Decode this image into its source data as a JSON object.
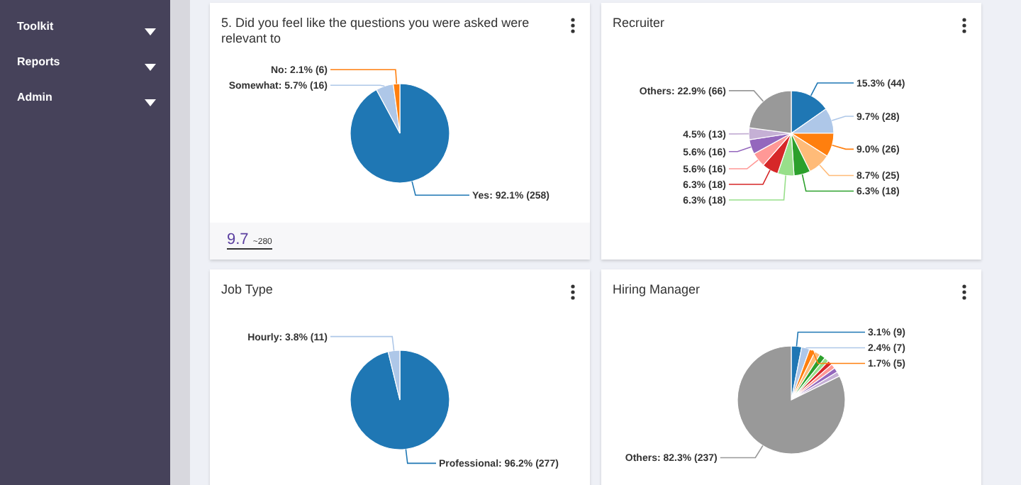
{
  "chart_data": [
    {
      "type": "other",
      "annotations": [
        "Toolkit",
        "Reports",
        "Admin"
      ]
    },
    {
      "type": "pie",
      "title": "5. Did you feel like the questions you were asked were relevant to",
      "categories": [
        "Yes",
        "Somewhat",
        "No"
      ],
      "values": [
        258,
        16,
        6
      ],
      "colors": [
        "#1f77b4",
        "#aec7e8",
        "#ff7f0e"
      ],
      "value_labels": [
        "92.1% (258)",
        "5.7% (16)",
        "2.1% (6)"
      ],
      "annotations": [
        "9.7",
        "~280"
      ]
    },
    {
      "type": "pie",
      "title": "Recruiter",
      "categories": [
        null,
        null,
        null,
        null,
        null,
        null,
        null,
        null,
        null,
        null,
        "Others"
      ],
      "values": [
        44,
        28,
        26,
        25,
        18,
        18,
        18,
        16,
        16,
        13,
        66
      ],
      "colors": [
        "#1f77b4",
        "#aec7e8",
        "#ff7f0e",
        "#ffbb78",
        "#2ca02c",
        "#98df8a",
        "#d62728",
        "#ff9896",
        "#9467bd",
        "#c5b0d5",
        "#999999"
      ],
      "value_labels": [
        "15.3% (44)",
        "9.7% (28)",
        "9.0% (26)",
        "8.7% (25)",
        "6.3% (18)",
        "6.3% (18)",
        "6.3% (18)",
        "5.6% (16)",
        "5.6% (16)",
        "4.5% (13)",
        "22.9% (66)"
      ]
    },
    {
      "type": "pie",
      "title": "Job Type",
      "categories": [
        "Professional",
        "Hourly"
      ],
      "values": [
        277,
        11
      ],
      "colors": [
        "#1f77b4",
        "#aec7e8"
      ],
      "value_labels": [
        "96.2% (277)",
        "3.8% (11)"
      ]
    },
    {
      "type": "pie",
      "title": "Hiring Manager",
      "categories": [
        null,
        null,
        null,
        null,
        null,
        null,
        null,
        null,
        null,
        null,
        "Others"
      ],
      "values": [
        9,
        7,
        5,
        5,
        5,
        4,
        4,
        4,
        4,
        4,
        237
      ],
      "colors": [
        "#1f77b4",
        "#aec7e8",
        "#ff7f0e",
        "#ffbb78",
        "#2ca02c",
        "#98df8a",
        "#d62728",
        "#ff9896",
        "#9467bd",
        "#c5b0d5",
        "#999999"
      ],
      "value_labels": [
        "3.1% (9)",
        "2.4% (7)",
        "1.7% (5)",
        null,
        null,
        null,
        null,
        null,
        null,
        null,
        "82.3% (237)"
      ]
    }
  ]
}
